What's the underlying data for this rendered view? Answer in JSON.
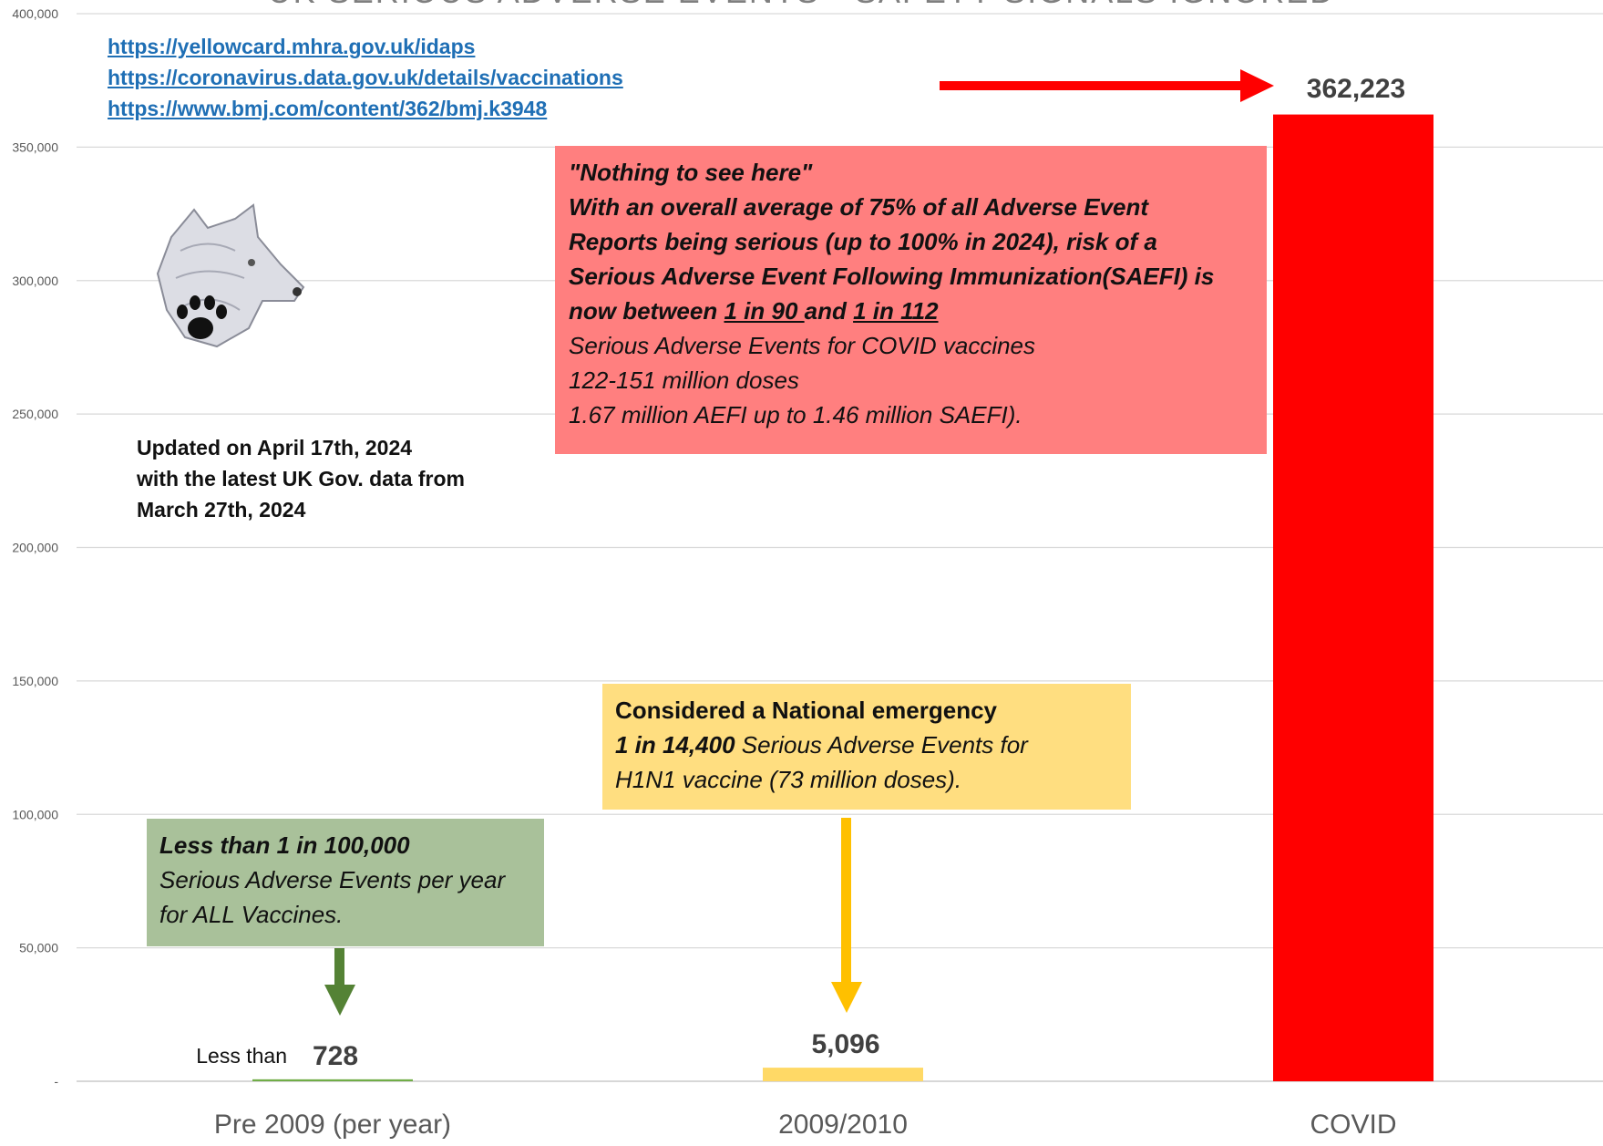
{
  "chart_data": {
    "type": "bar",
    "title": "UK SERIOUS ADVERSE EVENTS - SAFETY SIGNALS IGNORED",
    "categories": [
      "Pre 2009 (per year)",
      "2009/2010",
      "COVID"
    ],
    "values": [
      728,
      5096,
      362223
    ],
    "data_labels": [
      "728",
      "5,096",
      "362,223"
    ],
    "bar_colors": [
      "#70ad47",
      "#ffd966",
      "#ff0000"
    ],
    "ylim": [
      0,
      400000
    ],
    "yticks": [
      {
        "value": 0,
        "label": "-"
      },
      {
        "value": 50000,
        "label": "50,000"
      },
      {
        "value": 100000,
        "label": "100,000"
      },
      {
        "value": 150000,
        "label": "150,000"
      },
      {
        "value": 200000,
        "label": "200,000"
      },
      {
        "value": 250000,
        "label": "250,000"
      },
      {
        "value": 300000,
        "label": "300,000"
      },
      {
        "value": 350000,
        "label": "350,000"
      },
      {
        "value": 400000,
        "label": "400,000"
      }
    ],
    "grid": true,
    "pre_label_prefix": "Less than"
  },
  "links": [
    "https://yellowcard.mhra.gov.uk/idaps",
    "https://coronavirus.data.gov.uk/details/vaccinations",
    "https://www.bmj.com/content/362/bmj.k3948"
  ],
  "updated_note": [
    "Updated on April 17th, 2024",
    "with the latest UK Gov. data from",
    "March 27th, 2024"
  ],
  "red_box": {
    "line1": "\"Nothing to see here\"",
    "line2": "With an overall average of 75% of all Adverse Event",
    "line3": "Reports being serious (up to 100% in 2024), risk of a",
    "line4": "Serious Adverse Event Following Immunization(SAEFI) is",
    "line5_a": "now between ",
    "line5_b": "1 in 90 ",
    "line5_c": "and ",
    "line5_d": "1 in 112",
    "line6": "Serious Adverse Events for COVID vaccines",
    "line7": "122-151 million doses",
    "line8": "1.67 million AEFI up to 1.46 million SAEFI)."
  },
  "yellow_box": {
    "line1": "Considered a National emergency",
    "line2_a": "1 in 14,400",
    "line2_b": " Serious Adverse Events for",
    "line3": "H1N1 vaccine (73 million doses)."
  },
  "green_box": {
    "line1": "Less than 1 in 100,000",
    "line2": "Serious Adverse Events per year",
    "line3": "for ALL Vaccines."
  },
  "colors": {
    "red": "#ff0000",
    "red_box": "#ff7f7f",
    "yellow": "#ffd966",
    "yellow_arrow": "#ffc000",
    "yellow_box": "#ffde80",
    "green": "#70ad47",
    "green_arrow": "#548235",
    "green_box": "#a9c19a",
    "link": "#1f6fb5"
  }
}
